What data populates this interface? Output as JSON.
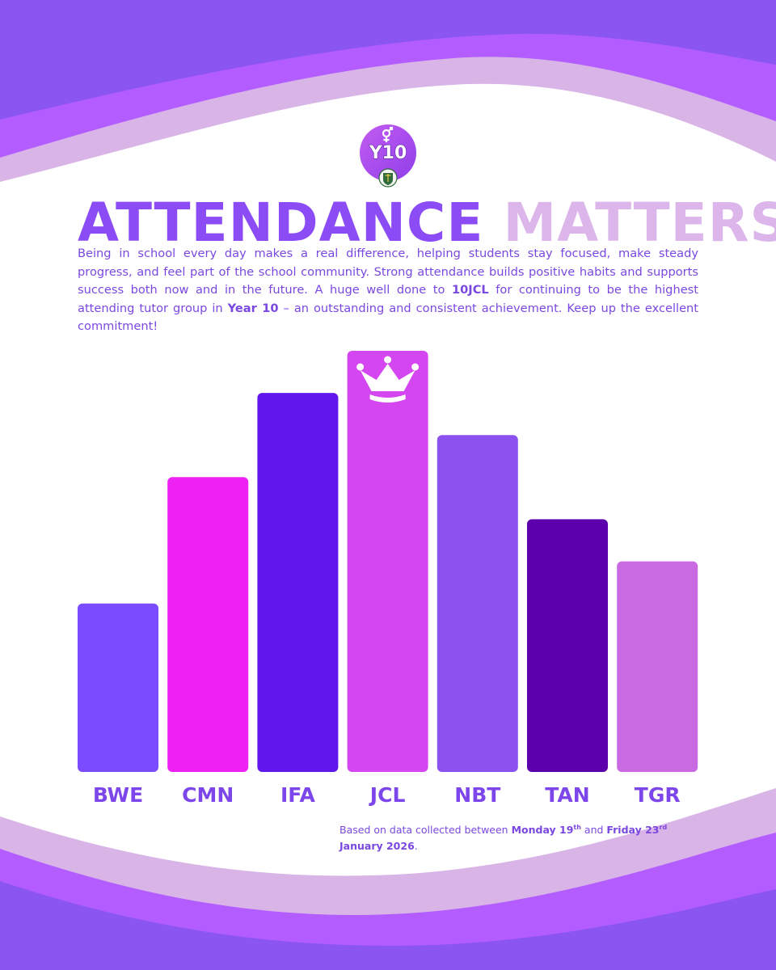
{
  "header": {
    "badge_text": "Y10",
    "title_part1": "ATTENDANCE",
    "title_part2": "MATTERS"
  },
  "intro": {
    "text_1": "Being in school every day makes a real difference, helping students stay focused, make steady progress, and feel part of the school community. Strong attendance builds positive habits and supports success both now and in the future. A huge well done to ",
    "highlight_group": "10JCL",
    "text_2": " for continuing to be the highest attending tutor group in ",
    "highlight_year": "Year 10",
    "text_3": " – an outstanding and consistent achievement. Keep up the excellent commitment!"
  },
  "chart_data": {
    "type": "bar",
    "title": "ATTENDANCE MATTERS",
    "xlabel": "",
    "ylabel": "",
    "ylim": [
      0,
      10
    ],
    "categories": [
      "BWE",
      "CMN",
      "IFA",
      "JCL",
      "NBT",
      "TAN",
      "TGR"
    ],
    "values": [
      4,
      7,
      9,
      10,
      8,
      6,
      5
    ],
    "colors": [
      "#7a4bff",
      "#ee22f5",
      "#5f17ec",
      "#d446f0",
      "#8b52f0",
      "#5b00aa",
      "#c96ae3"
    ],
    "highlight_category": "JCL",
    "highlight_icon": "crown-icon"
  },
  "footnote": {
    "prefix": "Based on data collected between ",
    "start_day": "Monday 19",
    "start_suffix": "th",
    "and": " and ",
    "end_day": "Friday 23",
    "end_suffix": "rd",
    "end_rest": "January 2026",
    "period": "."
  },
  "colors": {
    "wave_dark": "#8a55f0",
    "wave_mid": "#b35cff",
    "wave_light": "#d9b4e6",
    "accent": "#8b4cf5"
  }
}
